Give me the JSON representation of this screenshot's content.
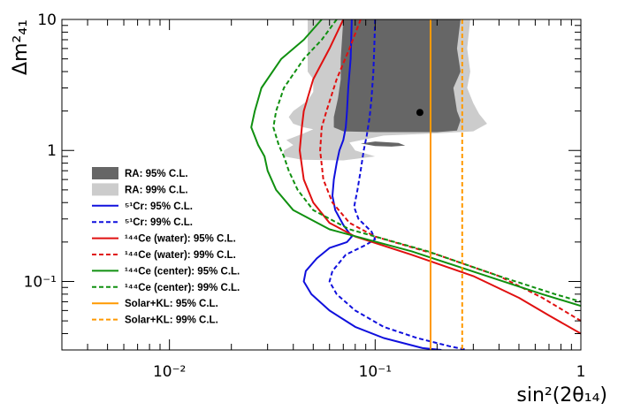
{
  "chart_data": {
    "type": "line",
    "title": "",
    "xlabel": "sin²(2θ₁₄)",
    "ylabel": "Δm²₄₁",
    "xscale": "log",
    "yscale": "log",
    "xlim": [
      0.003,
      1
    ],
    "ylim": [
      0.03,
      10
    ],
    "x_ticks": [
      {
        "value": 0.01,
        "label": "10⁻²"
      },
      {
        "value": 0.1,
        "label": "10⁻¹"
      },
      {
        "value": 1,
        "label": "1"
      }
    ],
    "y_ticks": [
      {
        "value": 0.1,
        "label": "10⁻¹"
      },
      {
        "value": 1,
        "label": "1"
      },
      {
        "value": 10,
        "label": "10"
      }
    ],
    "best_fit": {
      "x": 0.165,
      "y": 1.95
    },
    "regions": [
      {
        "name": "RA: 99% C.L.",
        "color": "#cccccc",
        "polygons": [
          [
            [
              0.047,
              10
            ],
            [
              0.047,
              4.0
            ],
            [
              0.05,
              3.5
            ],
            [
              0.05,
              2.8
            ],
            [
              0.047,
              2.4
            ],
            [
              0.04,
              2.0
            ],
            [
              0.038,
              1.8
            ],
            [
              0.04,
              1.6
            ],
            [
              0.045,
              1.5
            ],
            [
              0.05,
              1.45
            ],
            [
              0.045,
              1.35
            ],
            [
              0.037,
              1.2
            ],
            [
              0.04,
              1.1
            ],
            [
              0.036,
              1.0
            ],
            [
              0.036,
              0.9
            ],
            [
              0.044,
              0.85
            ],
            [
              0.07,
              0.84
            ],
            [
              0.1,
              0.9
            ],
            [
              0.08,
              1.0
            ],
            [
              0.075,
              1.15
            ],
            [
              0.11,
              1.3
            ],
            [
              0.2,
              1.35
            ],
            [
              0.3,
              1.4
            ],
            [
              0.35,
              1.6
            ],
            [
              0.32,
              1.9
            ],
            [
              0.3,
              2.3
            ],
            [
              0.28,
              3.0
            ],
            [
              0.29,
              4.0
            ],
            [
              0.28,
              6.0
            ],
            [
              0.29,
              10
            ]
          ]
        ]
      },
      {
        "name": "RA: 95% C.L.",
        "color": "#666666",
        "polygons": [
          [
            [
              0.07,
              10
            ],
            [
              0.068,
              5.0
            ],
            [
              0.068,
              3.5
            ],
            [
              0.066,
              2.5
            ],
            [
              0.063,
              1.8
            ],
            [
              0.063,
              1.5
            ],
            [
              0.07,
              1.4
            ],
            [
              0.1,
              1.38
            ],
            [
              0.2,
              1.38
            ],
            [
              0.25,
              1.42
            ],
            [
              0.26,
              1.7
            ],
            [
              0.25,
              2.0
            ],
            [
              0.24,
              3.0
            ],
            [
              0.26,
              4.0
            ],
            [
              0.25,
              6.0
            ],
            [
              0.26,
              10
            ]
          ],
          [
            [
              0.085,
              1.13
            ],
            [
              0.1,
              1.08
            ],
            [
              0.12,
              1.07
            ],
            [
              0.14,
              1.09
            ],
            [
              0.13,
              1.14
            ],
            [
              0.1,
              1.17
            ]
          ]
        ]
      }
    ],
    "series": [
      {
        "name": "⁵¹Cr: 95% C.L.",
        "color": "#1010dd",
        "dash": "solid",
        "points": [
          [
            0.077,
            10
          ],
          [
            0.076,
            5
          ],
          [
            0.074,
            3
          ],
          [
            0.073,
            2
          ],
          [
            0.072,
            1.5
          ],
          [
            0.07,
            1.2
          ],
          [
            0.067,
            1.0
          ],
          [
            0.065,
            0.8
          ],
          [
            0.063,
            0.6
          ],
          [
            0.062,
            0.45
          ],
          [
            0.064,
            0.35
          ],
          [
            0.07,
            0.27
          ],
          [
            0.077,
            0.22
          ],
          [
            0.073,
            0.2
          ],
          [
            0.06,
            0.18
          ],
          [
            0.052,
            0.15
          ],
          [
            0.046,
            0.12
          ],
          [
            0.045,
            0.1
          ],
          [
            0.049,
            0.08
          ],
          [
            0.06,
            0.06
          ],
          [
            0.08,
            0.045
          ],
          [
            0.11,
            0.037
          ],
          [
            0.17,
            0.031
          ],
          [
            0.21,
            0.03
          ]
        ]
      },
      {
        "name": "⁵¹Cr: 99% C.L.",
        "color": "#1010dd",
        "dash": "dashed",
        "points": [
          [
            0.1,
            10
          ],
          [
            0.099,
            6
          ],
          [
            0.098,
            4
          ],
          [
            0.096,
            2.5
          ],
          [
            0.094,
            1.8
          ],
          [
            0.091,
            1.3
          ],
          [
            0.088,
            1.0
          ],
          [
            0.085,
            0.7
          ],
          [
            0.082,
            0.5
          ],
          [
            0.079,
            0.37
          ],
          [
            0.083,
            0.3
          ],
          [
            0.096,
            0.24
          ],
          [
            0.1,
            0.21
          ],
          [
            0.09,
            0.19
          ],
          [
            0.072,
            0.16
          ],
          [
            0.062,
            0.12
          ],
          [
            0.06,
            0.1
          ],
          [
            0.065,
            0.08
          ],
          [
            0.08,
            0.06
          ],
          [
            0.11,
            0.045
          ],
          [
            0.16,
            0.037
          ],
          [
            0.23,
            0.032
          ],
          [
            0.28,
            0.03
          ]
        ]
      },
      {
        "name": "¹⁴⁴Ce (water): 95% C.L.",
        "color": "#e01010",
        "dash": "solid",
        "points": [
          [
            0.07,
            10
          ],
          [
            0.06,
            6
          ],
          [
            0.05,
            3.5
          ],
          [
            0.045,
            2.0
          ],
          [
            0.044,
            1.5
          ],
          [
            0.043,
            1.0
          ],
          [
            0.045,
            0.6
          ],
          [
            0.05,
            0.4
          ],
          [
            0.06,
            0.28
          ],
          [
            0.08,
            0.22
          ],
          [
            0.15,
            0.16
          ],
          [
            0.3,
            0.11
          ],
          [
            0.5,
            0.075
          ],
          [
            0.7,
            0.055
          ],
          [
            1.0,
            0.04
          ]
        ]
      },
      {
        "name": "¹⁴⁴Ce (water): 99% C.L.",
        "color": "#e01010",
        "dash": "dashed",
        "points": [
          [
            0.085,
            10
          ],
          [
            0.075,
            6
          ],
          [
            0.065,
            3.5
          ],
          [
            0.058,
            2.0
          ],
          [
            0.055,
            1.5
          ],
          [
            0.054,
            1.0
          ],
          [
            0.056,
            0.6
          ],
          [
            0.062,
            0.4
          ],
          [
            0.075,
            0.28
          ],
          [
            0.1,
            0.22
          ],
          [
            0.2,
            0.16
          ],
          [
            0.4,
            0.11
          ],
          [
            0.65,
            0.075
          ],
          [
            1.0,
            0.05
          ]
        ]
      },
      {
        "name": "¹⁴⁴Ce (center): 95% C.L.",
        "color": "#109010",
        "dash": "solid",
        "points": [
          [
            0.055,
            10
          ],
          [
            0.045,
            7
          ],
          [
            0.035,
            5
          ],
          [
            0.028,
            3
          ],
          [
            0.026,
            2
          ],
          [
            0.025,
            1.5
          ],
          [
            0.027,
            1.1
          ],
          [
            0.029,
            0.9
          ],
          [
            0.03,
            0.7
          ],
          [
            0.033,
            0.5
          ],
          [
            0.04,
            0.35
          ],
          [
            0.06,
            0.25
          ],
          [
            0.15,
            0.17
          ],
          [
            0.35,
            0.11
          ],
          [
            0.65,
            0.08
          ],
          [
            1.0,
            0.065
          ]
        ]
      },
      {
        "name": "¹⁴⁴Ce (center): 99% C.L.",
        "color": "#109010",
        "dash": "dashed",
        "points": [
          [
            0.065,
            10
          ],
          [
            0.055,
            7
          ],
          [
            0.045,
            5
          ],
          [
            0.036,
            3
          ],
          [
            0.033,
            2
          ],
          [
            0.032,
            1.5
          ],
          [
            0.034,
            1.1
          ],
          [
            0.036,
            0.9
          ],
          [
            0.038,
            0.7
          ],
          [
            0.042,
            0.5
          ],
          [
            0.05,
            0.35
          ],
          [
            0.075,
            0.25
          ],
          [
            0.18,
            0.17
          ],
          [
            0.4,
            0.11
          ],
          [
            0.75,
            0.08
          ],
          [
            1.0,
            0.07
          ]
        ]
      },
      {
        "name": "Solar+KL: 95% C.L.",
        "color": "#ff9900",
        "dash": "solid",
        "points": [
          [
            0.186,
            10
          ],
          [
            0.186,
            0.03
          ]
        ]
      },
      {
        "name": "Solar+KL: 99% C.L.",
        "color": "#ff9900",
        "dash": "dashed",
        "points": [
          [
            0.265,
            10
          ],
          [
            0.265,
            0.03
          ]
        ]
      }
    ],
    "legend": {
      "position": "middle-left",
      "entries": [
        {
          "label": "RA: 95% C.L.",
          "kind": "box",
          "color": "#666666",
          "dash": "solid"
        },
        {
          "label": "RA: 99% C.L.",
          "kind": "box",
          "color": "#cccccc",
          "dash": "solid"
        },
        {
          "label": "⁵¹Cr: 95% C.L.",
          "kind": "line",
          "color": "#1010dd",
          "dash": "solid"
        },
        {
          "label": "⁵¹Cr: 99% C.L.",
          "kind": "line",
          "color": "#1010dd",
          "dash": "dashed"
        },
        {
          "label": "¹⁴⁴Ce (water): 95% C.L.",
          "kind": "line",
          "color": "#e01010",
          "dash": "solid"
        },
        {
          "label": "¹⁴⁴Ce (water): 99% C.L.",
          "kind": "line",
          "color": "#e01010",
          "dash": "dashed"
        },
        {
          "label": "¹⁴⁴Ce (center): 95% C.L.",
          "kind": "line",
          "color": "#109010",
          "dash": "solid"
        },
        {
          "label": "¹⁴⁴Ce (center): 99% C.L.",
          "kind": "line",
          "color": "#109010",
          "dash": "dashed"
        },
        {
          "label": "Solar+KL: 95% C.L.",
          "kind": "line",
          "color": "#ff9900",
          "dash": "solid"
        },
        {
          "label": "Solar+KL: 99% C.L.",
          "kind": "line",
          "color": "#ff9900",
          "dash": "dashed"
        }
      ]
    }
  }
}
